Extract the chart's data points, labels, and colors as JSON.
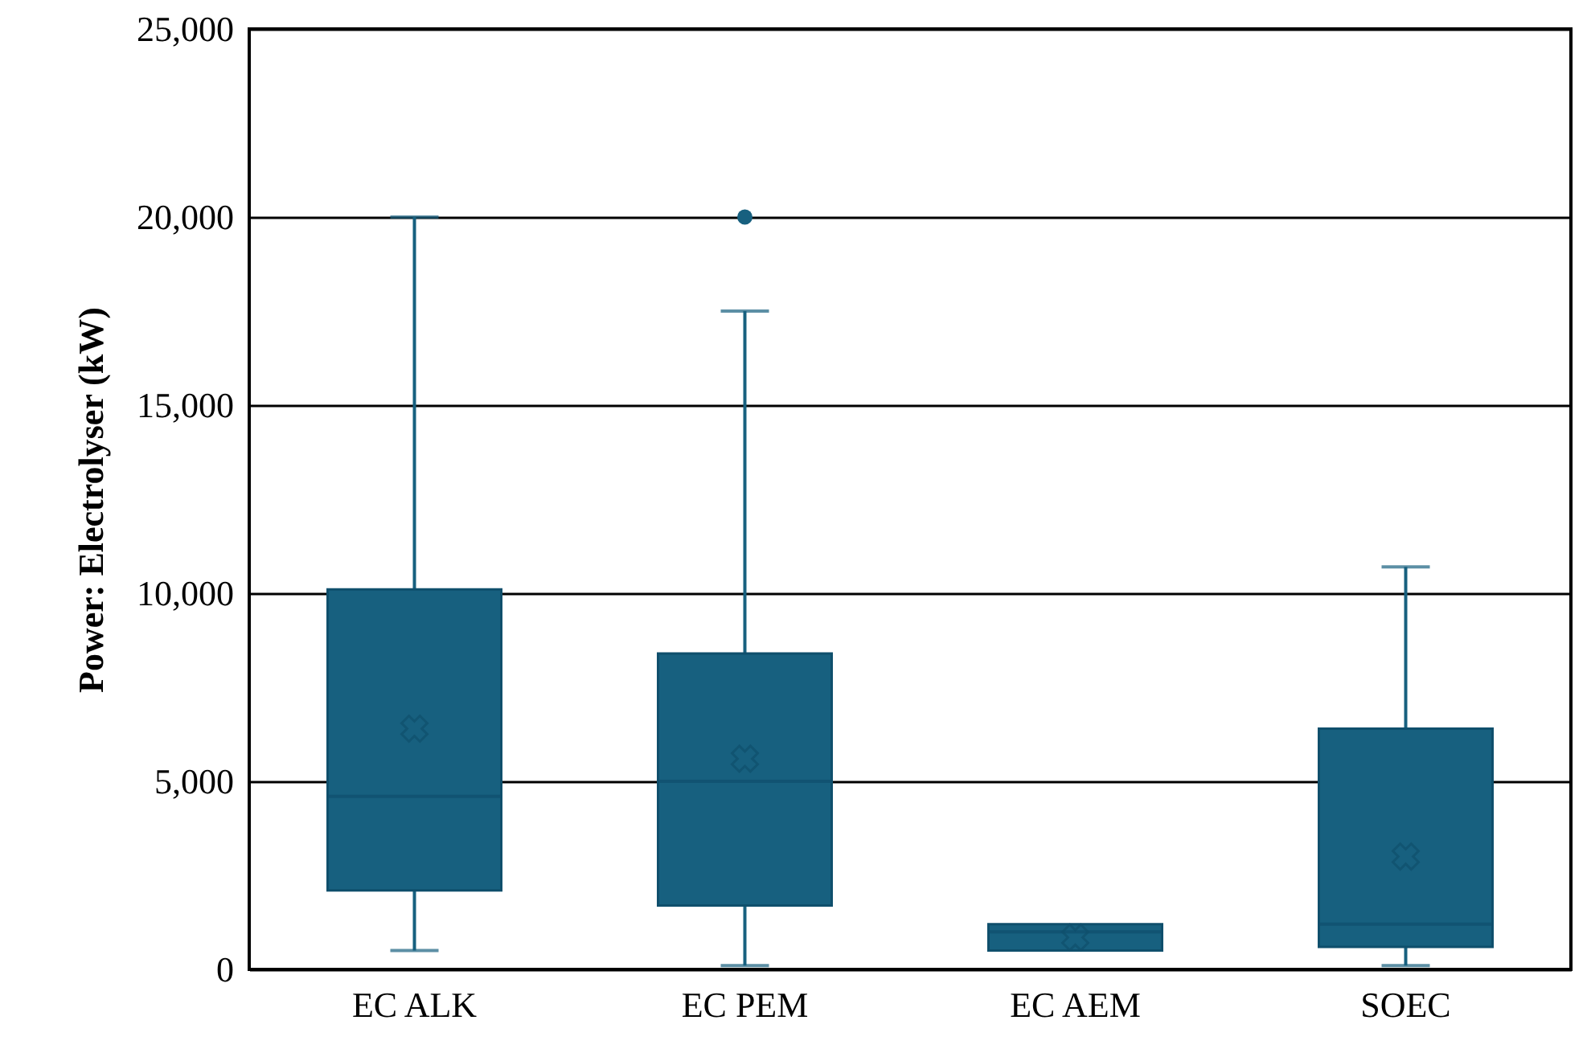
{
  "chart_data": {
    "type": "box",
    "ylabel": "Power: Electrolyser (kW)",
    "categories": [
      "EC ALK",
      "EC PEM",
      "EC AEM",
      "SOEC"
    ],
    "boxes": [
      {
        "low": 500,
        "q1": 2100,
        "median": 4600,
        "q3": 10100,
        "high": 20000,
        "mean": 6400
      },
      {
        "low": 100,
        "q1": 1700,
        "median": 5000,
        "q3": 8400,
        "high": 17500,
        "mean": 5600,
        "outliers": [
          20000
        ]
      },
      {
        "low": 500,
        "q1": 500,
        "median": 1000,
        "q3": 1200,
        "high": 1200,
        "mean": 850
      },
      {
        "low": 100,
        "q1": 600,
        "median": 1200,
        "q3": 6400,
        "high": 10700,
        "mean": 3000
      }
    ],
    "color": "#17607f",
    "ylim": [
      0,
      25000
    ],
    "yticks": [
      0,
      {
        "value": 5000,
        "label": "5,000"
      },
      {
        "value": 10000,
        "label": "10,000"
      },
      {
        "value": 15000,
        "label": "15,000"
      },
      {
        "value": 20000,
        "label": "20,000"
      },
      {
        "value": 25000,
        "label": "25,000"
      }
    ],
    "grid": "y"
  }
}
